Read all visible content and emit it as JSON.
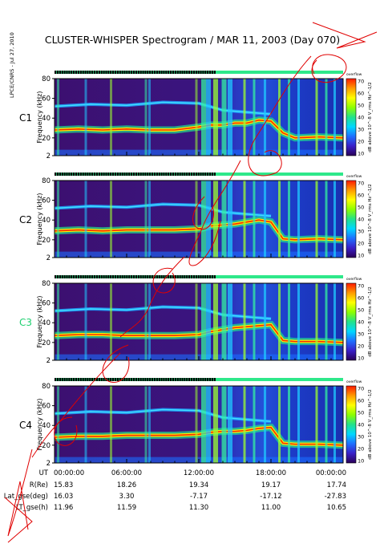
{
  "title": "CLUSTER-WHISPER Spectrogram / MAR 11, 2003 (Day 070)",
  "side_label": "LPCE/CNRS - Jul 27, 2010",
  "colorbar": {
    "label": "dB above 10^-8 V_rms Hz^-1/2",
    "top_tag": "overflow",
    "ticks": [
      "70",
      "60",
      "50",
      "40",
      "30",
      "20",
      "10"
    ],
    "range": [
      10,
      70
    ],
    "colors": [
      "#2a0058",
      "#3a1fc8",
      "#1f6fff",
      "#00d8ff",
      "#22e28a",
      "#8cff00",
      "#ffff00",
      "#ff9a00",
      "#ff1a00"
    ]
  },
  "chart_data": [
    {
      "type": "heatmap",
      "panel": "C1",
      "label_color": "#000000",
      "ylabel": "Frequency (kHz)",
      "yticks": [
        "2",
        "20",
        "40",
        "60",
        "80"
      ],
      "ylim": [
        2,
        80
      ],
      "xlim": [
        0,
        24
      ],
      "plasma_frequency_khz": [
        [
          0,
          28
        ],
        [
          2,
          29
        ],
        [
          4,
          28
        ],
        [
          6,
          29
        ],
        [
          8,
          28
        ],
        [
          10,
          28
        ],
        [
          12,
          31
        ],
        [
          13,
          33
        ],
        [
          14,
          33
        ],
        [
          15,
          35
        ],
        [
          16,
          35
        ],
        [
          17,
          38
        ],
        [
          18,
          37
        ],
        [
          19,
          25
        ],
        [
          20,
          20
        ],
        [
          22,
          21
        ],
        [
          24,
          20
        ]
      ]
    },
    {
      "type": "heatmap",
      "panel": "C2",
      "label_color": "#000000",
      "ylabel": "Frequency (kHz)",
      "yticks": [
        "2",
        "20",
        "40",
        "60",
        "80"
      ],
      "ylim": [
        2,
        80
      ],
      "xlim": [
        0,
        24
      ],
      "plasma_frequency_khz": [
        [
          0,
          29
        ],
        [
          2,
          30
        ],
        [
          4,
          29
        ],
        [
          6,
          30
        ],
        [
          8,
          30
        ],
        [
          10,
          30
        ],
        [
          12,
          31
        ],
        [
          13,
          34
        ],
        [
          14,
          35
        ],
        [
          15,
          36
        ],
        [
          16,
          38
        ],
        [
          17,
          40
        ],
        [
          18,
          38
        ],
        [
          19,
          21
        ],
        [
          20,
          20
        ],
        [
          22,
          21
        ],
        [
          24,
          20
        ]
      ]
    },
    {
      "type": "heatmap",
      "panel": "C3",
      "label_color": "#1fd070",
      "ylabel": "Frequency (kHz)",
      "yticks": [
        "2",
        "20",
        "40",
        "60",
        "80"
      ],
      "ylim": [
        2,
        80
      ],
      "xlim": [
        0,
        24
      ],
      "plasma_frequency_khz": [
        [
          0,
          27
        ],
        [
          2,
          28
        ],
        [
          4,
          28
        ],
        [
          6,
          27
        ],
        [
          8,
          27
        ],
        [
          10,
          27
        ],
        [
          12,
          28
        ],
        [
          13,
          31
        ],
        [
          14,
          33
        ],
        [
          15,
          35
        ],
        [
          16,
          36
        ],
        [
          17,
          37
        ],
        [
          18,
          38
        ],
        [
          19,
          22
        ],
        [
          20,
          21
        ],
        [
          22,
          21
        ],
        [
          24,
          20
        ]
      ]
    },
    {
      "type": "heatmap",
      "panel": "C4",
      "label_color": "#000000",
      "ylabel": "Frequency (kHz)",
      "yticks": [
        "2",
        "20",
        "40",
        "60",
        "80"
      ],
      "ylim": [
        2,
        80
      ],
      "xlim": [
        0,
        24
      ],
      "plasma_frequency_khz": [
        [
          0,
          28
        ],
        [
          2,
          29
        ],
        [
          4,
          29
        ],
        [
          6,
          30
        ],
        [
          8,
          30
        ],
        [
          10,
          30
        ],
        [
          12,
          31
        ],
        [
          13,
          33
        ],
        [
          14,
          34
        ],
        [
          15,
          34
        ],
        [
          16,
          35
        ],
        [
          17,
          37
        ],
        [
          18,
          38
        ],
        [
          19,
          22
        ],
        [
          20,
          21
        ],
        [
          22,
          21
        ],
        [
          24,
          20
        ]
      ]
    }
  ],
  "ephemeris": {
    "rows": [
      {
        "label": "UT",
        "values": [
          "00:00:00",
          "06:00:00",
          "12:00:00",
          "18:00:00",
          "00:00:00"
        ]
      },
      {
        "label": "R(Re)",
        "values": [
          "15.83",
          "18.26",
          "19.34",
          "19.17",
          "17.74"
        ]
      },
      {
        "label": "Lat_gse(deg)",
        "values": [
          "16.03",
          "3.30",
          "-7.17",
          "-17.12",
          "-27.83"
        ]
      },
      {
        "label": "LT_gse(h)",
        "values": [
          "11.96",
          "11.59",
          "11.30",
          "11.00",
          "10.65"
        ]
      }
    ]
  },
  "annotation_color": "#e00000"
}
